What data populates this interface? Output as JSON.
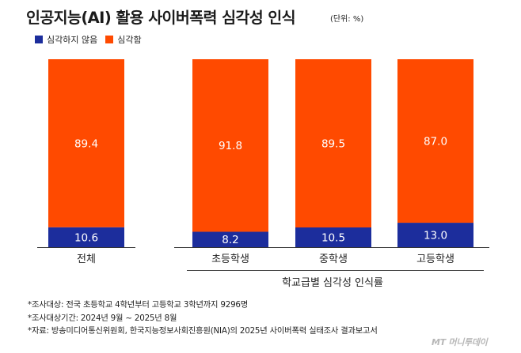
{
  "title": "인공지능(AI) 활용 사이버폭력 심각성 인식",
  "unit": "(단위: %)",
  "colors": {
    "not_serious": "#1c2d9c",
    "serious": "#ff4a00",
    "bar_label": "#ffffff",
    "axis": "#333333"
  },
  "chart_data": {
    "type": "bar",
    "stacked": true,
    "categories": [
      "전체",
      "초등학생",
      "중학생",
      "고등학생"
    ],
    "series": [
      {
        "name": "심각하지 않음",
        "values": [
          10.6,
          8.2,
          10.5,
          13.0
        ],
        "labels": [
          "10.6",
          "8.2",
          "10.5",
          "13.0"
        ]
      },
      {
        "name": "심각함",
        "values": [
          89.4,
          91.8,
          89.5,
          87.0
        ],
        "labels": [
          "89.4",
          "91.8",
          "89.5",
          "87.0"
        ]
      }
    ],
    "ylim": [
      0,
      100
    ],
    "group_label": "학교급별 심각성 인식률",
    "grid": false,
    "legend": "top-left"
  },
  "footnotes": [
    "*조사대상: 전국 초등학교 4학년부터 고등학교 3학년까지 9296명",
    "*조사대상기간: 2024년 9월 ~ 2025년 8월",
    "*자료: 방송미디어통신위원회, 한국지능정보사회진흥원(NIA)의 2025년 사이버폭력 실태조사 결과보고서"
  ],
  "logo": "MT 머니투데이"
}
